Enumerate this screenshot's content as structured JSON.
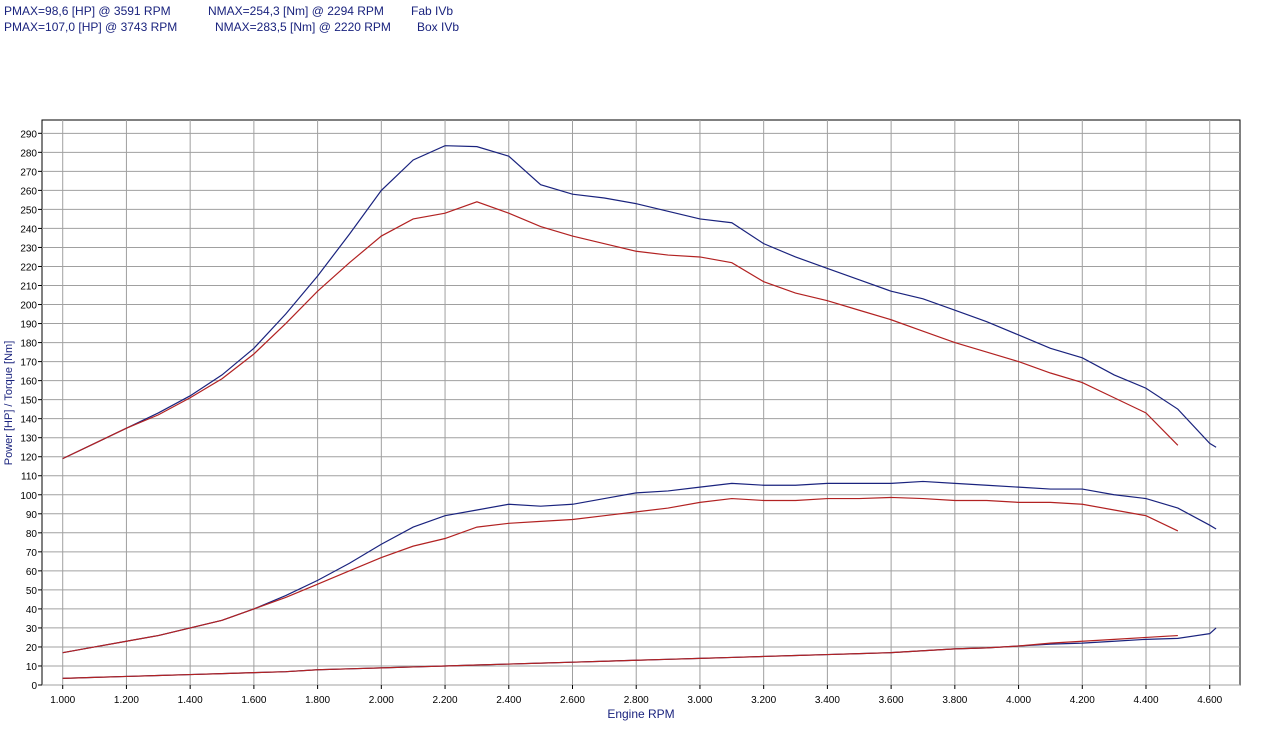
{
  "chart_data": {
    "type": "line",
    "header": [
      {
        "pmax": "PMAX=98,6 [HP] @ 3591 RPM",
        "nmax": "NMAX=254,3 [Nm] @ 2294 RPM",
        "name": "Fab IVb"
      },
      {
        "pmax": "PMAX=107,0 [HP] @ 3743 RPM",
        "nmax": "NMAX=283,5 [Nm] @ 2220 RPM",
        "name": "Box IVb"
      }
    ],
    "x_label": "Engine RPM",
    "y_label": "Power [HP] / Torque [Nm]",
    "xlim": [
      935,
      4695
    ],
    "ylim": [
      0,
      297
    ],
    "xticks": [
      {
        "value": 1000,
        "label": "1.000"
      },
      {
        "value": 1200,
        "label": "1.200"
      },
      {
        "value": 1400,
        "label": "1.400"
      },
      {
        "value": 1600,
        "label": "1.600"
      },
      {
        "value": 1800,
        "label": "1.800"
      },
      {
        "value": 2000,
        "label": "2.000"
      },
      {
        "value": 2200,
        "label": "2.200"
      },
      {
        "value": 2400,
        "label": "2.400"
      },
      {
        "value": 2600,
        "label": "2.600"
      },
      {
        "value": 2800,
        "label": "2.800"
      },
      {
        "value": 3000,
        "label": "3.000"
      },
      {
        "value": 3200,
        "label": "3.200"
      },
      {
        "value": 3400,
        "label": "3.400"
      },
      {
        "value": 3600,
        "label": "3.600"
      },
      {
        "value": 3800,
        "label": "3.800"
      },
      {
        "value": 4000,
        "label": "4.000"
      },
      {
        "value": 4200,
        "label": "4.200"
      },
      {
        "value": 4400,
        "label": "4.400"
      },
      {
        "value": 4600,
        "label": "4.600"
      }
    ],
    "yticks": [
      0,
      10,
      20,
      30,
      40,
      50,
      60,
      70,
      80,
      90,
      100,
      110,
      120,
      130,
      140,
      150,
      160,
      170,
      180,
      190,
      200,
      210,
      220,
      230,
      240,
      250,
      260,
      270,
      280,
      290
    ],
    "grid": true,
    "x": [
      1000,
      1100,
      1200,
      1300,
      1400,
      1500,
      1600,
      1700,
      1800,
      1900,
      2000,
      2100,
      2200,
      2300,
      2400,
      2500,
      2600,
      2700,
      2800,
      2900,
      3000,
      3100,
      3200,
      3300,
      3400,
      3500,
      3600,
      3700,
      3800,
      3900,
      4000,
      4100,
      4200,
      4300,
      4400,
      4500,
      4600,
      4620
    ],
    "series": [
      {
        "color": "#1a237e",
        "values": [
          119,
          127,
          135,
          143,
          152,
          163,
          177,
          195,
          215,
          237,
          260,
          276,
          283.5,
          283,
          278,
          263,
          258,
          256,
          253,
          249,
          245,
          243,
          232,
          225,
          219,
          213,
          207,
          203,
          197,
          191,
          184,
          177,
          172,
          163,
          156,
          145,
          127,
          125
        ]
      },
      {
        "color": "#b22222",
        "values": [
          119,
          127,
          135,
          142,
          151,
          161,
          174,
          190,
          207,
          222,
          236,
          245,
          248,
          254,
          248,
          241,
          236,
          232,
          228,
          226,
          225,
          222,
          212,
          206,
          202,
          197,
          192,
          186,
          180,
          175,
          170,
          164,
          159,
          151,
          143,
          126,
          null,
          null
        ]
      },
      {
        "color": "#1a237e",
        "values": [
          17,
          20,
          23,
          26,
          30,
          34,
          40,
          47,
          55,
          64,
          74,
          83,
          89,
          92,
          95,
          94,
          95,
          98,
          101,
          102,
          104,
          106,
          105,
          105,
          106,
          106,
          106,
          107,
          106,
          105,
          104,
          103,
          103,
          100,
          98,
          93,
          84,
          82
        ]
      },
      {
        "color": "#b22222",
        "values": [
          17,
          20,
          23,
          26,
          30,
          34,
          40,
          46,
          53,
          60,
          67,
          73,
          77,
          83,
          85,
          86,
          87,
          89,
          91,
          93,
          96,
          98,
          97,
          97,
          98,
          98,
          98.6,
          98,
          97,
          97,
          96,
          96,
          95,
          92,
          89,
          81,
          null,
          null
        ]
      },
      {
        "color": "#1a237e",
        "values": [
          3.5,
          4,
          4.5,
          5,
          5.5,
          6,
          6.5,
          7,
          8,
          8.5,
          9,
          9.5,
          10,
          10.5,
          11,
          11.5,
          12,
          12.5,
          13,
          13.5,
          14,
          14.5,
          15,
          15.5,
          16,
          16.5,
          17,
          18,
          19,
          19.5,
          20.5,
          21.5,
          22,
          23,
          24,
          24.5,
          27,
          30
        ]
      },
      {
        "color": "#b22222",
        "values": [
          3.5,
          4,
          4.5,
          5,
          5.5,
          6,
          6.5,
          7,
          8,
          8.5,
          9,
          9.5,
          10,
          10.5,
          11,
          11.5,
          12,
          12.5,
          13,
          13.5,
          14,
          14.5,
          15,
          15.5,
          16,
          16.5,
          17,
          18,
          19,
          19.5,
          20.5,
          22,
          23,
          24,
          25,
          26,
          null,
          null
        ]
      }
    ]
  }
}
